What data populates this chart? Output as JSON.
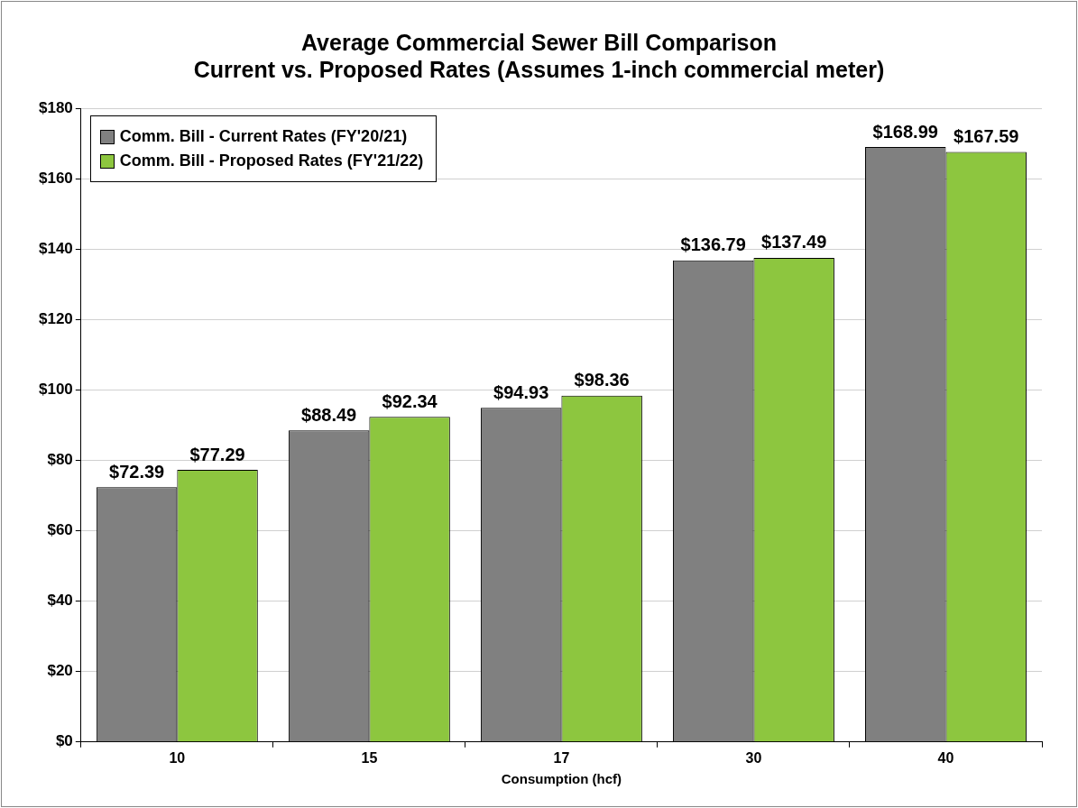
{
  "chart_data": {
    "type": "bar",
    "title": "Average Commercial Sewer Bill Comparison",
    "subtitle": "Current vs. Proposed Rates (Assumes 1-inch commercial meter)",
    "xlabel": "Consumption (hcf)",
    "categories": [
      "10",
      "15",
      "17",
      "30",
      "40"
    ],
    "series": [
      {
        "name": "Comm. Bill - Current Rates (FY'20/21)",
        "color": "#808080",
        "values": [
          72.39,
          88.49,
          94.93,
          136.79,
          168.99
        ],
        "value_labels": [
          "$72.39",
          "$88.49",
          "$94.93",
          "$136.79",
          "$168.99"
        ]
      },
      {
        "name": "Comm. Bill - Proposed Rates (FY'21/22)",
        "color": "#8dc63f",
        "values": [
          77.29,
          92.34,
          98.36,
          137.49,
          167.59
        ],
        "value_labels": [
          "$77.29",
          "$92.34",
          "$98.36",
          "$137.49",
          "$167.59"
        ]
      }
    ],
    "ylim": [
      0,
      180
    ],
    "yticks": [
      {
        "value": 0,
        "label": "$0"
      },
      {
        "value": 20,
        "label": "$20"
      },
      {
        "value": 40,
        "label": "$40"
      },
      {
        "value": 60,
        "label": "$60"
      },
      {
        "value": 80,
        "label": "$80"
      },
      {
        "value": 100,
        "label": "$100"
      },
      {
        "value": 120,
        "label": "$120"
      },
      {
        "value": 140,
        "label": "$140"
      },
      {
        "value": 160,
        "label": "$160"
      },
      {
        "value": 180,
        "label": "$180"
      }
    ],
    "grid": "y",
    "legend": "top left"
  }
}
